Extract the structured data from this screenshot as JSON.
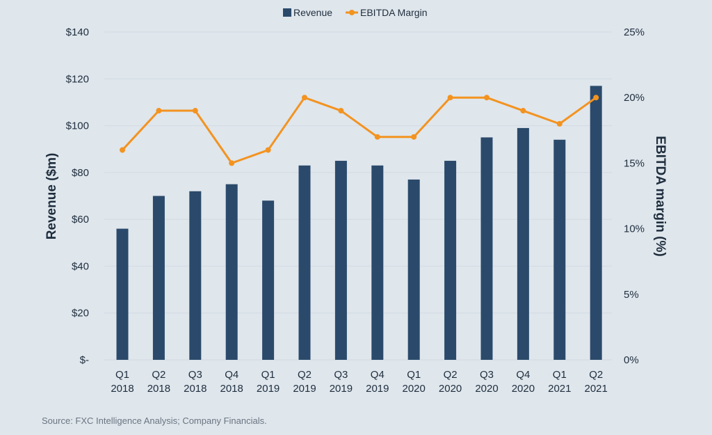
{
  "chart_data": {
    "type": "bar+line",
    "categories": [
      "Q1 2018",
      "Q2 2018",
      "Q3 2018",
      "Q4 2018",
      "Q1 2019",
      "Q2 2019",
      "Q3 2019",
      "Q4 2019",
      "Q1 2020",
      "Q2 2020",
      "Q3 2020",
      "Q4 2020",
      "Q1 2021",
      "Q2 2021"
    ],
    "category_lines": [
      [
        "Q1",
        "2018"
      ],
      [
        "Q2",
        "2018"
      ],
      [
        "Q3",
        "2018"
      ],
      [
        "Q4",
        "2018"
      ],
      [
        "Q1",
        "2019"
      ],
      [
        "Q2",
        "2019"
      ],
      [
        "Q3",
        "2019"
      ],
      [
        "Q4",
        "2019"
      ],
      [
        "Q1",
        "2020"
      ],
      [
        "Q2",
        "2020"
      ],
      [
        "Q3",
        "2020"
      ],
      [
        "Q4",
        "2020"
      ],
      [
        "Q1",
        "2021"
      ],
      [
        "Q2",
        "2021"
      ]
    ],
    "series": [
      {
        "name": "Revenue",
        "type": "bar",
        "axis": "left",
        "color": "#2b4a6b",
        "values": [
          56,
          70,
          72,
          75,
          68,
          83,
          85,
          83,
          77,
          85,
          95,
          99,
          94,
          117
        ]
      },
      {
        "name": "EBITDA Margin",
        "type": "line",
        "axis": "right",
        "color": "#f39320",
        "values": [
          16,
          19,
          19,
          15,
          16,
          20,
          19,
          17,
          17,
          20,
          20,
          19,
          18,
          20
        ]
      }
    ],
    "ylabel": "Revenue ($m)",
    "y2label": "EBITDA margin (%)",
    "ylim": [
      0,
      140
    ],
    "y2lim": [
      0,
      25
    ],
    "yticks": [
      "$-",
      "$20",
      "$40",
      "$60",
      "$80",
      "$100",
      "$120",
      "$140"
    ],
    "y2ticks": [
      "0%",
      "5%",
      "10%",
      "15%",
      "20%",
      "25%"
    ],
    "grid": true,
    "legend": "top-center"
  },
  "source": "Source: FXC Intelligence Analysis; Company Financials."
}
